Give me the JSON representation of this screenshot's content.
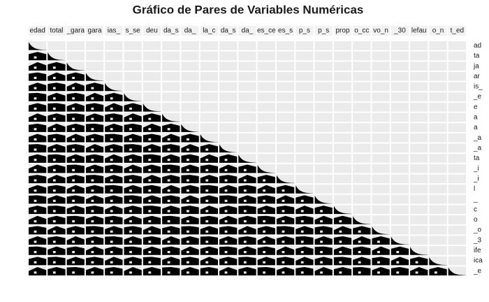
{
  "chart_data": {
    "type": "pairs",
    "title": "Gráfico de Pares de Variables Numéricas",
    "column_labels": [
      "edad",
      "total",
      "_gara",
      "gara",
      "ias_",
      "s_se",
      "deu",
      "da_s",
      "da_",
      "la_c",
      "da_s",
      "da_",
      "es_ce",
      "es_s",
      "p_s",
      "p_s",
      "prop",
      "o_cc",
      "vo_n",
      "_30",
      "lefau",
      "o_n",
      "t_ed"
    ],
    "row_labels": [
      "ad",
      "ta",
      "ja",
      "ar",
      "is_",
      "_e",
      "e",
      "a",
      "a",
      "_a",
      "_a",
      "ta",
      "_i",
      "_i",
      "l",
      "_",
      "c",
      "o",
      "_o",
      "_3",
      "ife",
      "ica",
      "_e"
    ]
  }
}
